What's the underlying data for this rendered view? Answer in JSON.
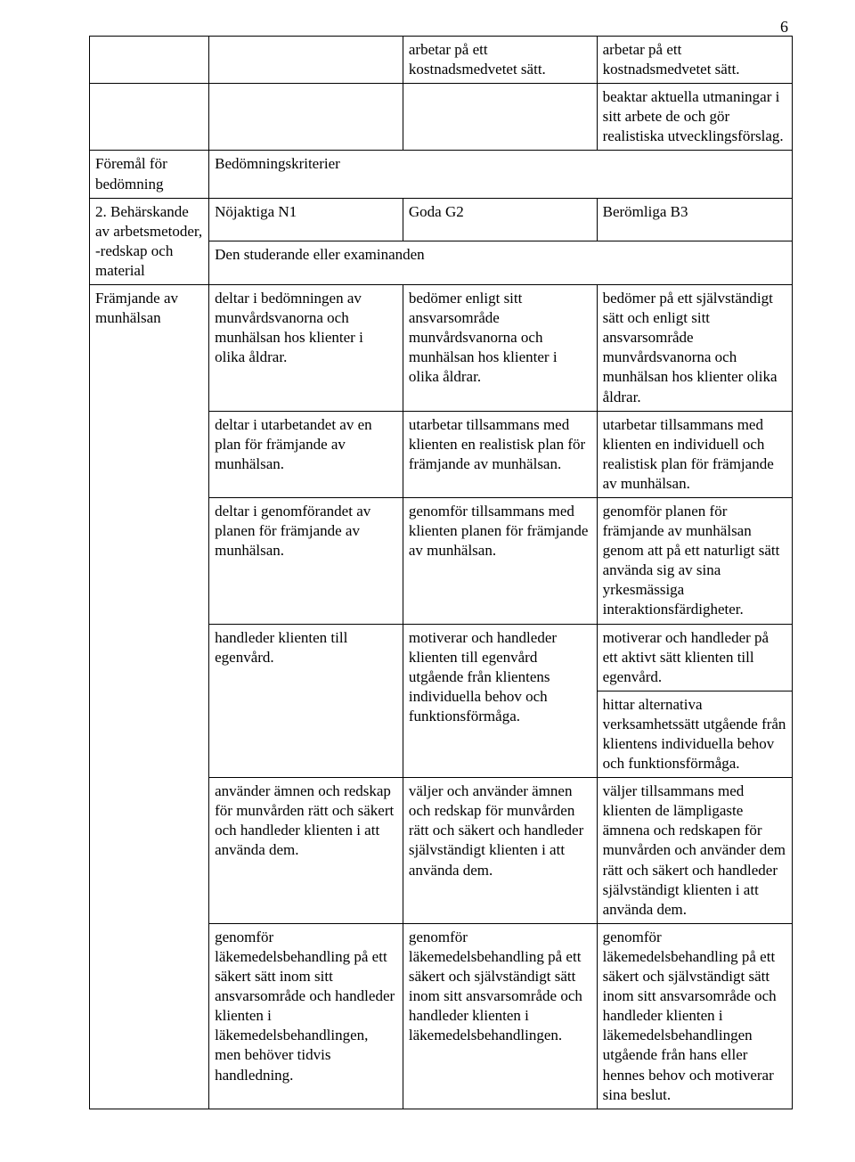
{
  "page_number": "6",
  "toprow": {
    "c2": "arbetar på ett kostnadsmedvetet sätt.",
    "c3_a": "arbetar på ett kostnadsmedvetet sätt.",
    "c3_b": "beaktar aktuella utmaningar i sitt arbete de och gör realistiska utvecklingsförslag."
  },
  "header": {
    "label": "Föremål för bedömning",
    "criteria": "Bedömningskriterier"
  },
  "section": {
    "title_prefix": "2. Behärskande av arbetsmetoder, -redskap och material",
    "n1": "Nöjaktiga N1",
    "g2": "Goda G2",
    "b3": "Berömliga B3",
    "studerande": "Den studerande eller examinanden"
  },
  "topic": "Främjande av munhälsan",
  "rows": [
    {
      "a": "deltar i bedömningen av munvårdsvanorna och munhälsan hos klienter i olika åldrar.",
      "b": "bedömer enligt sitt ansvarsområde munvårdsvanorna och munhälsan hos klienter i olika åldrar.",
      "c": "bedömer på ett självständigt sätt och enligt sitt ansvarsområde munvårdsvanorna och munhälsan hos klienter olika åldrar."
    },
    {
      "a": "deltar i utarbetandet av en plan för främjande av munhälsan.",
      "b": "utarbetar tillsammans med klienten en realistisk plan för främjande av munhälsan.",
      "c": "utarbetar tillsammans med klienten en individuell och realistisk plan för främjande av munhälsan."
    },
    {
      "a": "deltar i genomförandet av planen för främjande av munhälsan.",
      "b": "genomför tillsammans med klienten planen för främjande av munhälsan.",
      "c": "genomför planen för främjande av munhälsan genom att på ett naturligt sätt använda sig av sina yrkesmässiga interaktionsfärdigheter."
    },
    {
      "a": "handleder klienten till egenvård.",
      "b": "motiverar och handleder klienten till egenvård utgående från klientens individuella behov och funktionsförmåga.",
      "c": "motiverar och handleder på ett aktivt sätt klienten till egenvård."
    },
    {
      "c": "hittar alternativa verksamhetssätt utgående från klientens individuella behov och funktionsförmåga."
    },
    {
      "a": "använder ämnen och redskap för munvården  rätt och säkert och handleder klienten i att använda dem.",
      "b": "väljer och använder ämnen och redskap för munvården rätt och säkert och handleder självständigt klienten i att använda dem.",
      "c": "väljer tillsammans med klienten de lämpligaste ämnena och redskapen för munvården och använder dem rätt och säkert och handleder självständigt klienten i att använda dem."
    },
    {
      "a": "genomför läkemedelsbehandling på ett säkert sätt inom sitt ansvarsområde och handleder klienten i läkemedelsbehandlingen, men behöver tidvis handledning.",
      "b": "genomför läkemedelsbehandling på ett säkert och självständigt sätt inom sitt ansvarsområde och handleder klienten i läkemedelsbehandlingen.",
      "c": "genomför läkemedelsbehandling på ett säkert och självständigt sätt inom sitt ansvarsområde och handleder klienten i läkemedelsbehandlingen utgående från hans eller hennes behov och motiverar sina beslut."
    }
  ]
}
